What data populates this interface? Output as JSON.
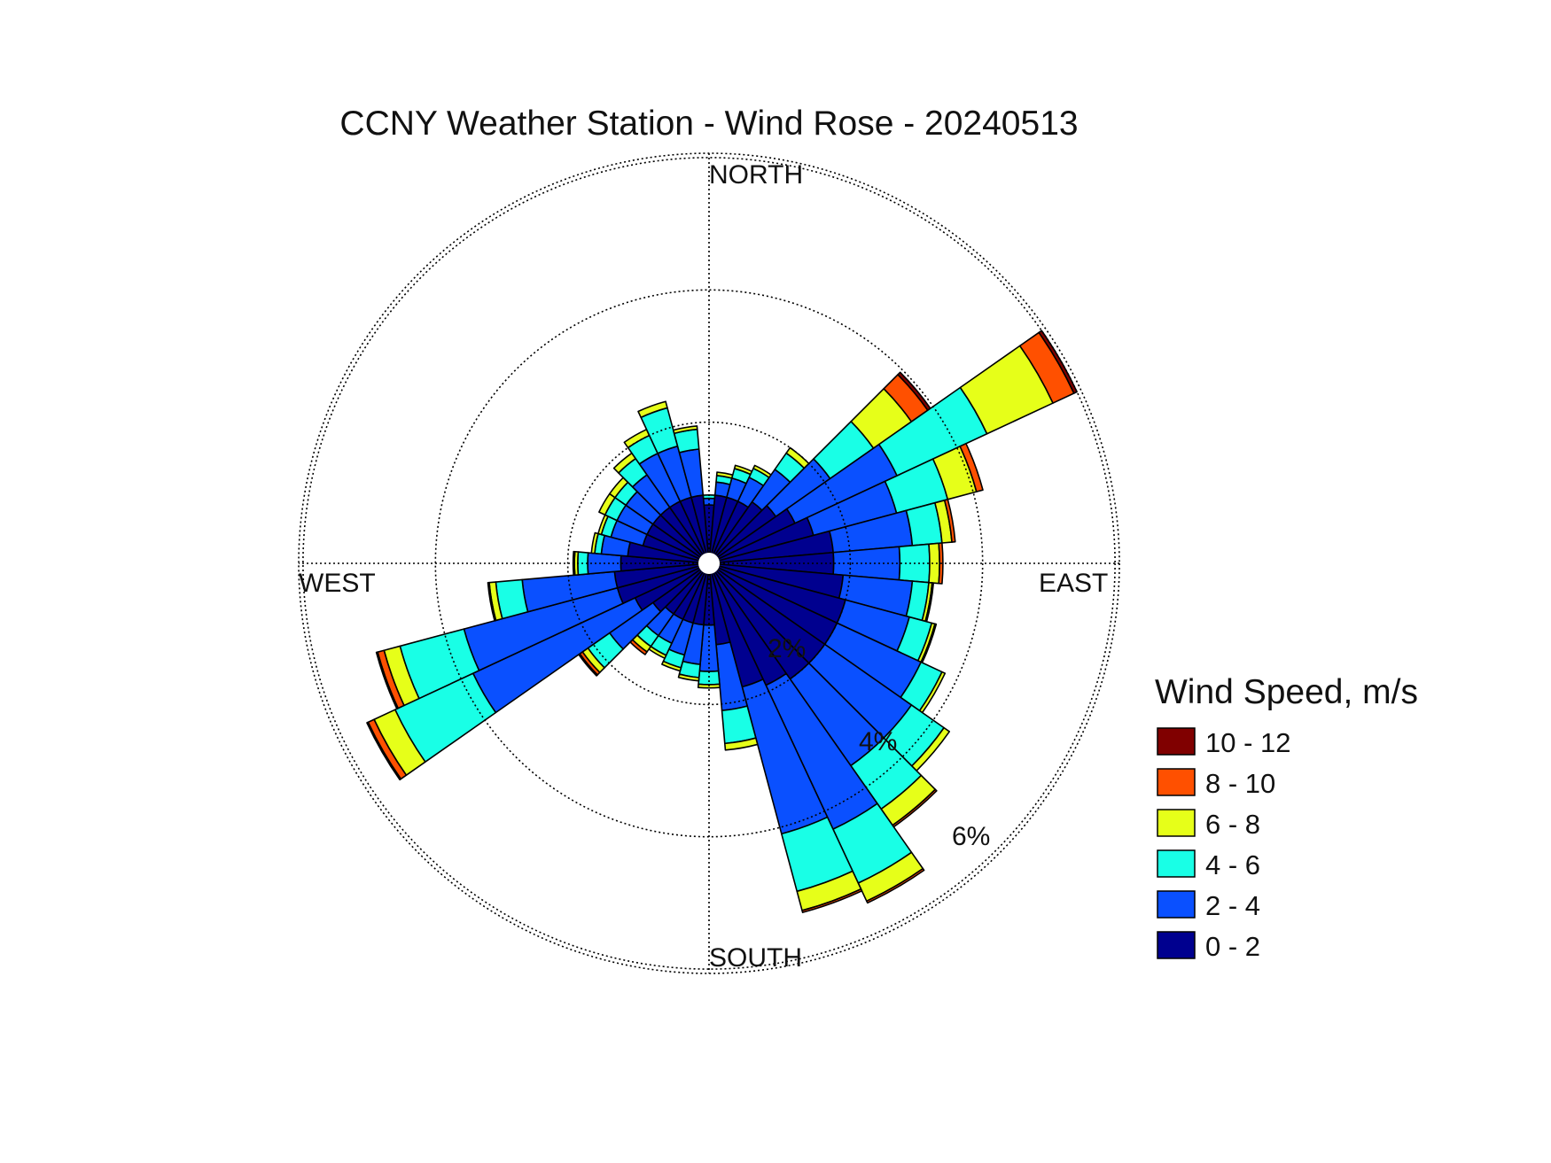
{
  "chart_data": {
    "type": "wind-rose",
    "title": "CCNY Weather Station - Wind Rose - 20240513",
    "directions": [
      "NORTH",
      "EAST",
      "SOUTH",
      "WEST"
    ],
    "ring_labels": [
      "2%",
      "4%",
      "6%"
    ],
    "rings_percent": [
      2,
      4,
      6
    ],
    "rmax_percent": 6.2,
    "sector_count": 36,
    "legend_title": "Wind Speed, m/s",
    "bins": [
      {
        "label": "0 - 2",
        "color": "#00008f"
      },
      {
        "label": "2 - 4",
        "color": "#0a50ff"
      },
      {
        "label": "4 - 6",
        "color": "#19ffe6"
      },
      {
        "label": "6 - 8",
        "color": "#e6ff19"
      },
      {
        "label": "8 - 10",
        "color": "#ff5000"
      },
      {
        "label": "10 - 12",
        "color": "#800000"
      }
    ],
    "sectors": [
      {
        "dir": 0,
        "values": [
          0.75,
          0.1,
          0.05,
          0,
          0,
          0
        ]
      },
      {
        "dir": 10,
        "values": [
          0.9,
          0.2,
          0.1,
          0.05,
          0,
          0
        ]
      },
      {
        "dir": 20,
        "values": [
          0.9,
          0.3,
          0.15,
          0.05,
          0,
          0
        ]
      },
      {
        "dir": 30,
        "values": [
          0.9,
          0.4,
          0.15,
          0.05,
          0,
          0
        ]
      },
      {
        "dir": 40,
        "values": [
          1.0,
          0.6,
          0.3,
          0.1,
          0,
          0
        ]
      },
      {
        "dir": 50,
        "values": [
          1.1,
          1.0,
          0.8,
          0.7,
          0.3,
          0.05
        ]
      },
      {
        "dir": 60,
        "values": [
          1.3,
          1.7,
          1.5,
          1.1,
          0.35,
          0.05
        ]
      },
      {
        "dir": 70,
        "values": [
          1.5,
          1.3,
          0.8,
          0.45,
          0.1,
          0
        ]
      },
      {
        "dir": 80,
        "values": [
          1.75,
          1.2,
          0.45,
          0.15,
          0.05,
          0
        ]
      },
      {
        "dir": 90,
        "values": [
          1.75,
          1.0,
          0.45,
          0.15,
          0.05,
          0
        ]
      },
      {
        "dir": 100,
        "values": [
          1.9,
          1.05,
          0.25,
          0.05,
          0.02,
          0
        ]
      },
      {
        "dir": 110,
        "values": [
          2.0,
          1.0,
          0.35,
          0.05,
          0.02,
          0
        ]
      },
      {
        "dir": 120,
        "values": [
          2.0,
          1.4,
          0.35,
          0.05,
          0,
          0
        ]
      },
      {
        "dir": 130,
        "values": [
          2.0,
          1.6,
          0.6,
          0.1,
          0,
          0
        ]
      },
      {
        "dir": 140,
        "values": [
          2.0,
          1.6,
          0.8,
          0.3,
          0.03,
          0
        ]
      },
      {
        "dir": 150,
        "values": [
          1.9,
          2.4,
          0.9,
          0.3,
          0.03,
          0
        ]
      },
      {
        "dir": 160,
        "values": [
          1.8,
          2.3,
          0.9,
          0.3,
          0.03,
          0
        ]
      },
      {
        "dir": 170,
        "values": [
          1.1,
          1.0,
          0.5,
          0.1,
          0,
          0
        ]
      },
      {
        "dir": 180,
        "values": [
          0.8,
          0.7,
          0.2,
          0.05,
          0,
          0
        ]
      },
      {
        "dir": 190,
        "values": [
          0.8,
          0.6,
          0.2,
          0.05,
          0,
          0
        ]
      },
      {
        "dir": 200,
        "values": [
          0.8,
          0.5,
          0.2,
          0.05,
          0,
          0
        ]
      },
      {
        "dir": 210,
        "values": [
          0.8,
          0.4,
          0.2,
          0.05,
          0,
          0
        ]
      },
      {
        "dir": 220,
        "values": [
          0.8,
          0.4,
          0.2,
          0.1,
          0.05,
          0
        ]
      },
      {
        "dir": 230,
        "values": [
          0.9,
          0.8,
          0.4,
          0.1,
          0.05,
          0.02
        ]
      },
      {
        "dir": 240,
        "values": [
          1.1,
          2.7,
          1.3,
          0.35,
          0.1,
          0.02
        ]
      },
      {
        "dir": 250,
        "values": [
          1.3,
          2.4,
          1.0,
          0.25,
          0.1,
          0.02
        ]
      },
      {
        "dir": 260,
        "values": [
          1.3,
          1.4,
          0.4,
          0.1,
          0.02,
          0
        ]
      },
      {
        "dir": 270,
        "values": [
          1.2,
          0.5,
          0.15,
          0.05,
          0.02,
          0
        ]
      },
      {
        "dir": 280,
        "values": [
          1.1,
          0.4,
          0.1,
          0.05,
          0,
          0
        ]
      },
      {
        "dir": 290,
        "values": [
          0.9,
          0.5,
          0.15,
          0.05,
          0,
          0
        ]
      },
      {
        "dir": 300,
        "values": [
          0.9,
          0.5,
          0.2,
          0.1,
          0,
          0
        ]
      },
      {
        "dir": 310,
        "values": [
          0.9,
          0.5,
          0.2,
          0.1,
          0,
          0
        ]
      },
      {
        "dir": 320,
        "values": [
          0.9,
          0.6,
          0.3,
          0.1,
          0,
          0
        ]
      },
      {
        "dir": 330,
        "values": [
          0.9,
          0.8,
          0.3,
          0.1,
          0,
          0
        ]
      },
      {
        "dir": 340,
        "values": [
          0.9,
          0.8,
          0.6,
          0.1,
          0,
          0
        ]
      },
      {
        "dir": 350,
        "values": [
          0.9,
          0.7,
          0.3,
          0.05,
          0,
          0
        ]
      }
    ]
  }
}
